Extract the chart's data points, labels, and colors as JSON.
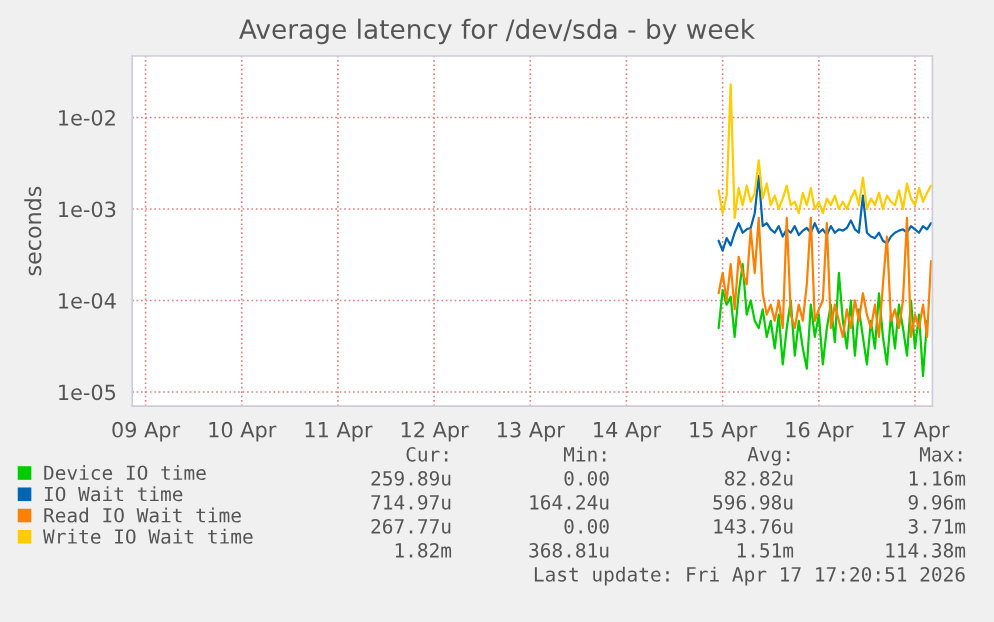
{
  "chart_data": {
    "type": "line",
    "title": "Average latency for /dev/sda - by week",
    "ylabel": "seconds",
    "log": "y",
    "grid": true,
    "legend": "bottom left",
    "marker": "none",
    "line_style": "solid",
    "xlim": [
      "2026-04-09T08:40",
      "2026-04-17T16:20"
    ],
    "xticks": [
      {
        "value": "2026-04-09T12:00",
        "label": "09 Apr"
      },
      {
        "value": "2026-04-10T12:00",
        "label": "10 Apr"
      },
      {
        "value": "2026-04-11T12:00",
        "label": "11 Apr"
      },
      {
        "value": "2026-04-12T12:00",
        "label": "12 Apr"
      },
      {
        "value": "2026-04-13T12:00",
        "label": "13 Apr"
      },
      {
        "value": "2026-04-14T12:00",
        "label": "14 Apr"
      },
      {
        "value": "2026-04-15T12:00",
        "label": "15 Apr"
      },
      {
        "value": "2026-04-16T12:00",
        "label": "16 Apr"
      },
      {
        "value": "2026-04-17T12:00",
        "label": "17 Apr"
      }
    ],
    "ylim": [
      7e-06,
      0.047
    ],
    "yticks": [
      {
        "value": 1e-05,
        "label": "1e-05"
      },
      {
        "value": 0.0001,
        "label": "1e-04"
      },
      {
        "value": 0.001,
        "label": "1e-03"
      },
      {
        "value": 0.01,
        "label": "1e-02"
      }
    ],
    "x": [
      "2026-04-15T11:00",
      "2026-04-15T12:00",
      "2026-04-15T13:00",
      "2026-04-15T14:00",
      "2026-04-15T15:00",
      "2026-04-15T16:00",
      "2026-04-15T17:00",
      "2026-04-15T18:00",
      "2026-04-15T19:00",
      "2026-04-15T20:00",
      "2026-04-15T21:00",
      "2026-04-15T22:00",
      "2026-04-15T23:00",
      "2026-04-16T00:00",
      "2026-04-16T01:00",
      "2026-04-16T02:00",
      "2026-04-16T03:00",
      "2026-04-16T04:00",
      "2026-04-16T05:00",
      "2026-04-16T06:00",
      "2026-04-16T07:00",
      "2026-04-16T08:00",
      "2026-04-16T09:00",
      "2026-04-16T10:00",
      "2026-04-16T11:00",
      "2026-04-16T12:00",
      "2026-04-16T13:00",
      "2026-04-16T14:00",
      "2026-04-16T15:00",
      "2026-04-16T16:00",
      "2026-04-16T17:00",
      "2026-04-16T18:00",
      "2026-04-16T19:00",
      "2026-04-16T20:00",
      "2026-04-16T21:00",
      "2026-04-16T22:00",
      "2026-04-16T23:00",
      "2026-04-17T00:00",
      "2026-04-17T01:00",
      "2026-04-17T02:00",
      "2026-04-17T03:00",
      "2026-04-17T04:00",
      "2026-04-17T05:00",
      "2026-04-17T06:00",
      "2026-04-17T07:00",
      "2026-04-17T08:00",
      "2026-04-17T09:00",
      "2026-04-17T10:00",
      "2026-04-17T11:00",
      "2026-04-17T12:00",
      "2026-04-17T13:00",
      "2026-04-17T14:00",
      "2026-04-17T15:00",
      "2026-04-17T16:00"
    ],
    "series": [
      {
        "name": "Device IO time",
        "color": "#00cc00",
        "values": [
          5e-05,
          0.00013,
          9e-05,
          0.00011,
          4e-05,
          0.00012,
          0.00025,
          7e-05,
          0.0001,
          6e-05,
          5e-05,
          8e-05,
          4e-05,
          6e-05,
          3e-05,
          7e-05,
          2e-05,
          5e-05,
          0.0001,
          2.5e-05,
          6e-05,
          3e-05,
          1.8e-05,
          9e-05,
          4e-05,
          7e-05,
          2e-05,
          5e-05,
          9e-05,
          3.5e-05,
          0.0002,
          6e-05,
          3e-05,
          0.0001,
          2.5e-05,
          8e-05,
          4e-05,
          2e-05,
          6e-05,
          3e-05,
          0.00012,
          4e-05,
          2e-05,
          7e-05,
          3e-05,
          9e-05,
          5e-05,
          2.5e-05,
          0.0001,
          3e-05,
          7e-05,
          1.5e-05,
          6e-05,
          null
        ]
      },
      {
        "name": "IO Wait time",
        "color": "#0066b3",
        "values": [
          0.00045,
          0.00035,
          0.00048,
          0.0004,
          0.00055,
          0.0007,
          0.00055,
          0.0006,
          0.00062,
          0.0009,
          0.0023,
          0.00065,
          0.0007,
          0.0006,
          0.00055,
          0.00065,
          0.0005,
          0.0006,
          0.00055,
          0.00065,
          0.00052,
          0.00058,
          0.00062,
          0.00055,
          0.0007,
          0.00055,
          0.0006,
          0.00052,
          0.00065,
          0.00055,
          0.0006,
          0.00058,
          0.00062,
          0.00075,
          0.0006,
          0.00055,
          0.0014,
          0.00055,
          0.0005,
          0.00048,
          0.00055,
          0.00045,
          0.00042,
          0.0005,
          0.00055,
          0.00058,
          0.0006,
          0.00055,
          0.00065,
          0.0006,
          0.00055,
          0.00065,
          0.0006,
          0.0007
        ]
      },
      {
        "name": "Read IO Wait time",
        "color": "#ff8000",
        "values": [
          0.00012,
          0.0002,
          0.0001,
          0.00025,
          8e-05,
          0.0003,
          0.0002,
          0.00015,
          0.0006,
          0.0002,
          0.0008,
          0.00012,
          7e-05,
          9e-05,
          6e-05,
          0.0001,
          5e-05,
          0.0008,
          7e-05,
          5e-05,
          9e-05,
          6e-05,
          0.00015,
          0.0008,
          6e-05,
          8e-05,
          0.0001,
          0.0007,
          5e-05,
          9e-05,
          6e-05,
          4e-05,
          8e-05,
          5e-05,
          0.0001,
          6e-05,
          0.00012,
          7e-05,
          5e-05,
          9e-05,
          4e-05,
          0.00015,
          0.0005,
          6e-05,
          8e-05,
          5e-05,
          0.0001,
          0.0008,
          4e-05,
          7e-05,
          5e-05,
          9e-05,
          4e-05,
          0.00027
        ]
      },
      {
        "name": "Write IO Wait time",
        "color": "#ffcc00",
        "values": [
          0.0016,
          0.0009,
          0.0014,
          0.023,
          0.0008,
          0.0017,
          0.0011,
          0.0018,
          0.0012,
          0.0015,
          0.0034,
          0.0013,
          0.0019,
          0.0011,
          0.0014,
          0.001,
          0.0013,
          0.0018,
          0.0011,
          0.0012,
          0.0009,
          0.0015,
          0.0011,
          0.0017,
          0.001,
          0.0012,
          0.0009,
          0.0013,
          0.0011,
          0.0014,
          0.001,
          0.0012,
          0.001,
          0.0013,
          0.0016,
          0.0011,
          0.0022,
          0.001,
          0.0013,
          0.0011,
          0.0015,
          0.001,
          0.0014,
          0.0012,
          0.0011,
          0.0016,
          0.001,
          0.0019,
          0.0013,
          0.0011,
          0.0017,
          0.0012,
          0.0015,
          0.0018
        ]
      }
    ],
    "annotations": [
      "Cur:",
      "Min:",
      "Avg:",
      "Max:",
      "259.89u",
      "0.00",
      "82.82u",
      "1.16m",
      "714.97u",
      "164.24u",
      "596.98u",
      "9.96m",
      "267.77u",
      "0.00",
      "143.76u",
      "3.71m",
      "1.82m",
      "368.81u",
      "1.51m",
      "114.38m",
      "Last update: Fri Apr 17 17:20:51 2026"
    ]
  }
}
